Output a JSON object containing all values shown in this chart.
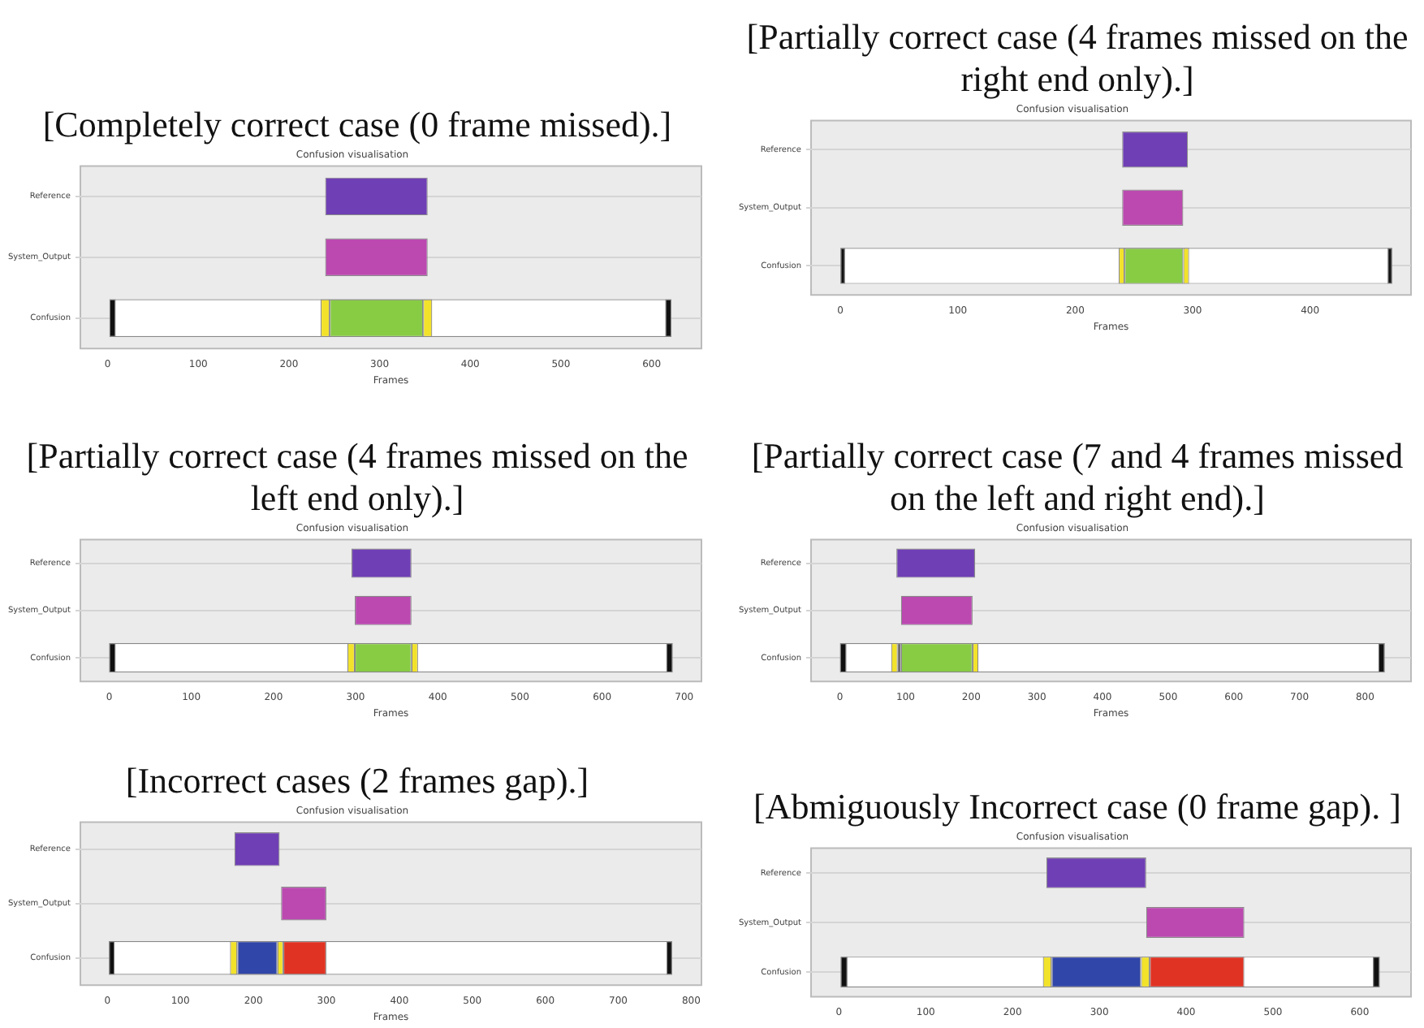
{
  "chart_data": [
    {
      "type": "bar",
      "orientation": "horizontal",
      "title": "[Completely correct case (0 frame missed).]",
      "subtitle": "Confusion visualisation",
      "xlabel": "Frames",
      "categories": [
        "Reference",
        "System_Output",
        "Confusion"
      ],
      "xlim": [
        -30,
        655
      ],
      "xticks": [
        0,
        100,
        200,
        300,
        400,
        500,
        600
      ],
      "grid": "y",
      "series": [
        {
          "color": "#ffffff",
          "values": [
            null,
            null,
            620
          ],
          "base": [
            null,
            null,
            2
          ]
        },
        {
          "color": "#6f3fb5",
          "values": [
            113,
            null,
            null
          ],
          "base": [
            240,
            null,
            null
          ]
        },
        {
          "color": "#bb49b0",
          "values": [
            null,
            113,
            null
          ],
          "base": [
            null,
            240,
            null
          ]
        },
        {
          "color": "#111111",
          "values": [
            null,
            null,
            7
          ],
          "base": [
            null,
            null,
            2
          ]
        },
        {
          "color": "#111111",
          "values": [
            null,
            null,
            7
          ],
          "base": [
            null,
            null,
            615
          ]
        },
        {
          "color": "#f2e22a",
          "values": [
            null,
            null,
            10
          ],
          "base": [
            null,
            null,
            235
          ]
        },
        {
          "color": "#88cc44",
          "values": [
            null,
            null,
            103
          ],
          "base": [
            null,
            null,
            245
          ]
        },
        {
          "color": "#f2e22a",
          "values": [
            null,
            null,
            10
          ],
          "base": [
            null,
            null,
            348
          ]
        }
      ]
    },
    {
      "type": "bar",
      "orientation": "horizontal",
      "title": "[Partially correct case (4 frames missed on the right end only).]",
      "subtitle": "Confusion visualisation",
      "xlabel": "Frames",
      "categories": [
        "Reference",
        "System_Output",
        "Confusion"
      ],
      "xlim": [
        -25,
        486
      ],
      "xticks": [
        0,
        100,
        200,
        300,
        400
      ],
      "grid": "y",
      "series": [
        {
          "color": "#ffffff",
          "values": [
            null,
            null,
            470
          ],
          "base": [
            null,
            null,
            0
          ]
        },
        {
          "color": "#6f3fb5",
          "values": [
            56,
            null,
            null
          ],
          "base": [
            240,
            null,
            null
          ]
        },
        {
          "color": "#bb49b0",
          "values": [
            null,
            52,
            null
          ],
          "base": [
            null,
            240,
            null
          ]
        },
        {
          "color": "#111111",
          "values": [
            null,
            null,
            4
          ],
          "base": [
            null,
            null,
            0
          ]
        },
        {
          "color": "#111111",
          "values": [
            null,
            null,
            4
          ],
          "base": [
            null,
            null,
            466
          ]
        },
        {
          "color": "#f2e22a",
          "values": [
            null,
            null,
            5
          ],
          "base": [
            null,
            null,
            237
          ]
        },
        {
          "color": "#88cc44",
          "values": [
            null,
            null,
            50
          ],
          "base": [
            null,
            null,
            242
          ]
        },
        {
          "color": "#f2e22a",
          "values": [
            null,
            null,
            5
          ],
          "base": [
            null,
            null,
            292
          ]
        }
      ]
    },
    {
      "type": "bar",
      "orientation": "horizontal",
      "title": "[Partially correct case (4 frames missed on the left end only).]",
      "subtitle": "Confusion visualisation",
      "xlabel": "Frames",
      "categories": [
        "Reference",
        "System_Output",
        "Confusion"
      ],
      "xlim": [
        -35,
        721
      ],
      "xticks": [
        0,
        100,
        200,
        300,
        400,
        500,
        600,
        700
      ],
      "grid": "y",
      "series": [
        {
          "color": "#ffffff",
          "values": [
            null,
            null,
            686
          ],
          "base": [
            null,
            null,
            0
          ]
        },
        {
          "color": "#6f3fb5",
          "values": [
            73,
            null,
            null
          ],
          "base": [
            295,
            null,
            null
          ]
        },
        {
          "color": "#bb49b0",
          "values": [
            null,
            69,
            null
          ],
          "base": [
            null,
            299,
            null
          ]
        },
        {
          "color": "#111111",
          "values": [
            null,
            null,
            8
          ],
          "base": [
            null,
            null,
            0
          ]
        },
        {
          "color": "#111111",
          "values": [
            null,
            null,
            8
          ],
          "base": [
            null,
            null,
            678
          ]
        },
        {
          "color": "#f2e22a",
          "values": [
            null,
            null,
            9
          ],
          "base": [
            null,
            null,
            290
          ]
        },
        {
          "color": "#88cc44",
          "values": [
            null,
            null,
            69
          ],
          "base": [
            null,
            null,
            299
          ]
        },
        {
          "color": "#f2e22a",
          "values": [
            null,
            null,
            8
          ],
          "base": [
            null,
            null,
            368
          ]
        }
      ]
    },
    {
      "type": "bar",
      "orientation": "horizontal",
      "title": "[Partially correct case (7 and 4 frames missed on the left and right end).]",
      "subtitle": "Confusion visualisation",
      "xlabel": "Frames",
      "categories": [
        "Reference",
        "System_Output",
        "Confusion"
      ],
      "xlim": [
        -44,
        870
      ],
      "xticks": [
        0,
        100,
        200,
        300,
        400,
        500,
        600,
        700,
        800
      ],
      "grid": "y",
      "series": [
        {
          "color": "#ffffff",
          "values": [
            null,
            null,
            830
          ],
          "base": [
            null,
            null,
            0
          ]
        },
        {
          "color": "#6f3fb5",
          "values": [
            120,
            null,
            null
          ],
          "base": [
            86,
            null,
            null
          ]
        },
        {
          "color": "#bb49b0",
          "values": [
            null,
            109,
            null
          ],
          "base": [
            null,
            93,
            null
          ]
        },
        {
          "color": "#111111",
          "values": [
            null,
            null,
            10
          ],
          "base": [
            null,
            null,
            0
          ]
        },
        {
          "color": "#111111",
          "values": [
            null,
            null,
            10
          ],
          "base": [
            null,
            null,
            820
          ]
        },
        {
          "color": "#f2e22a",
          "values": [
            null,
            null,
            10
          ],
          "base": [
            null,
            null,
            78
          ]
        },
        {
          "color": "#555555",
          "values": [
            null,
            null,
            5
          ],
          "base": [
            null,
            null,
            88
          ]
        },
        {
          "color": "#88cc44",
          "values": [
            null,
            null,
            109
          ],
          "base": [
            null,
            null,
            93
          ]
        },
        {
          "color": "#f2e22a",
          "values": [
            null,
            null,
            9
          ],
          "base": [
            null,
            null,
            202
          ]
        }
      ]
    },
    {
      "type": "bar",
      "orientation": "horizontal",
      "title": "[Incorrect cases (2 frames gap).]",
      "subtitle": "Confusion visualisation",
      "xlabel": "Frames",
      "categories": [
        "Reference",
        "System_Output",
        "Confusion"
      ],
      "xlim": [
        -37,
        814
      ],
      "xticks": [
        0,
        100,
        200,
        300,
        400,
        500,
        600,
        700,
        800
      ],
      "grid": "y",
      "series": [
        {
          "color": "#ffffff",
          "values": [
            null,
            null,
            772
          ],
          "base": [
            null,
            null,
            2
          ]
        },
        {
          "color": "#6f3fb5",
          "values": [
            62,
            null,
            null
          ],
          "base": [
            174,
            null,
            null
          ]
        },
        {
          "color": "#bb49b0",
          "values": [
            null,
            62,
            null
          ],
          "base": [
            null,
            238,
            null
          ]
        },
        {
          "color": "#111111",
          "values": [
            null,
            null,
            8
          ],
          "base": [
            null,
            null,
            2
          ]
        },
        {
          "color": "#111111",
          "values": [
            null,
            null,
            8
          ],
          "base": [
            null,
            null,
            766
          ]
        },
        {
          "color": "#f2e22a",
          "values": [
            null,
            null,
            10
          ],
          "base": [
            null,
            null,
            168
          ]
        },
        {
          "color": "#3046a8",
          "values": [
            null,
            null,
            55
          ],
          "base": [
            null,
            null,
            178
          ]
        },
        {
          "color": "#f2e22a",
          "values": [
            null,
            null,
            8
          ],
          "base": [
            null,
            null,
            233
          ]
        },
        {
          "color": "#e03323",
          "values": [
            null,
            null,
            59
          ],
          "base": [
            null,
            null,
            241
          ]
        }
      ]
    },
    {
      "type": "bar",
      "orientation": "horizontal",
      "title": "[Abmiguously Incorrect case (0 frame gap). ]",
      "subtitle": "Confusion visualisation",
      "categories": [
        "Reference",
        "System_Output",
        "Confusion"
      ],
      "xlim": [
        -32,
        659
      ],
      "xticks": [
        0,
        100,
        200,
        300,
        400,
        500,
        600
      ],
      "grid": "y",
      "series": [
        {
          "color": "#ffffff",
          "values": [
            null,
            null,
            621
          ],
          "base": [
            null,
            null,
            2
          ]
        },
        {
          "color": "#6f3fb5",
          "values": [
            115,
            null,
            null
          ],
          "base": [
            239,
            null,
            null
          ]
        },
        {
          "color": "#bb49b0",
          "values": [
            null,
            113,
            null
          ],
          "base": [
            null,
            354,
            null
          ]
        },
        {
          "color": "#111111",
          "values": [
            null,
            null,
            8
          ],
          "base": [
            null,
            null,
            2
          ]
        },
        {
          "color": "#111111",
          "values": [
            null,
            null,
            8
          ],
          "base": [
            null,
            null,
            615
          ]
        },
        {
          "color": "#f2e22a",
          "values": [
            null,
            null,
            10
          ],
          "base": [
            null,
            null,
            235
          ]
        },
        {
          "color": "#3046a8",
          "values": [
            null,
            null,
            103
          ],
          "base": [
            null,
            null,
            245
          ]
        },
        {
          "color": "#f2e22a",
          "values": [
            null,
            null,
            10
          ],
          "base": [
            null,
            null,
            348
          ]
        },
        {
          "color": "#e03323",
          "values": [
            null,
            null,
            109
          ],
          "base": [
            null,
            null,
            358
          ]
        }
      ]
    }
  ]
}
